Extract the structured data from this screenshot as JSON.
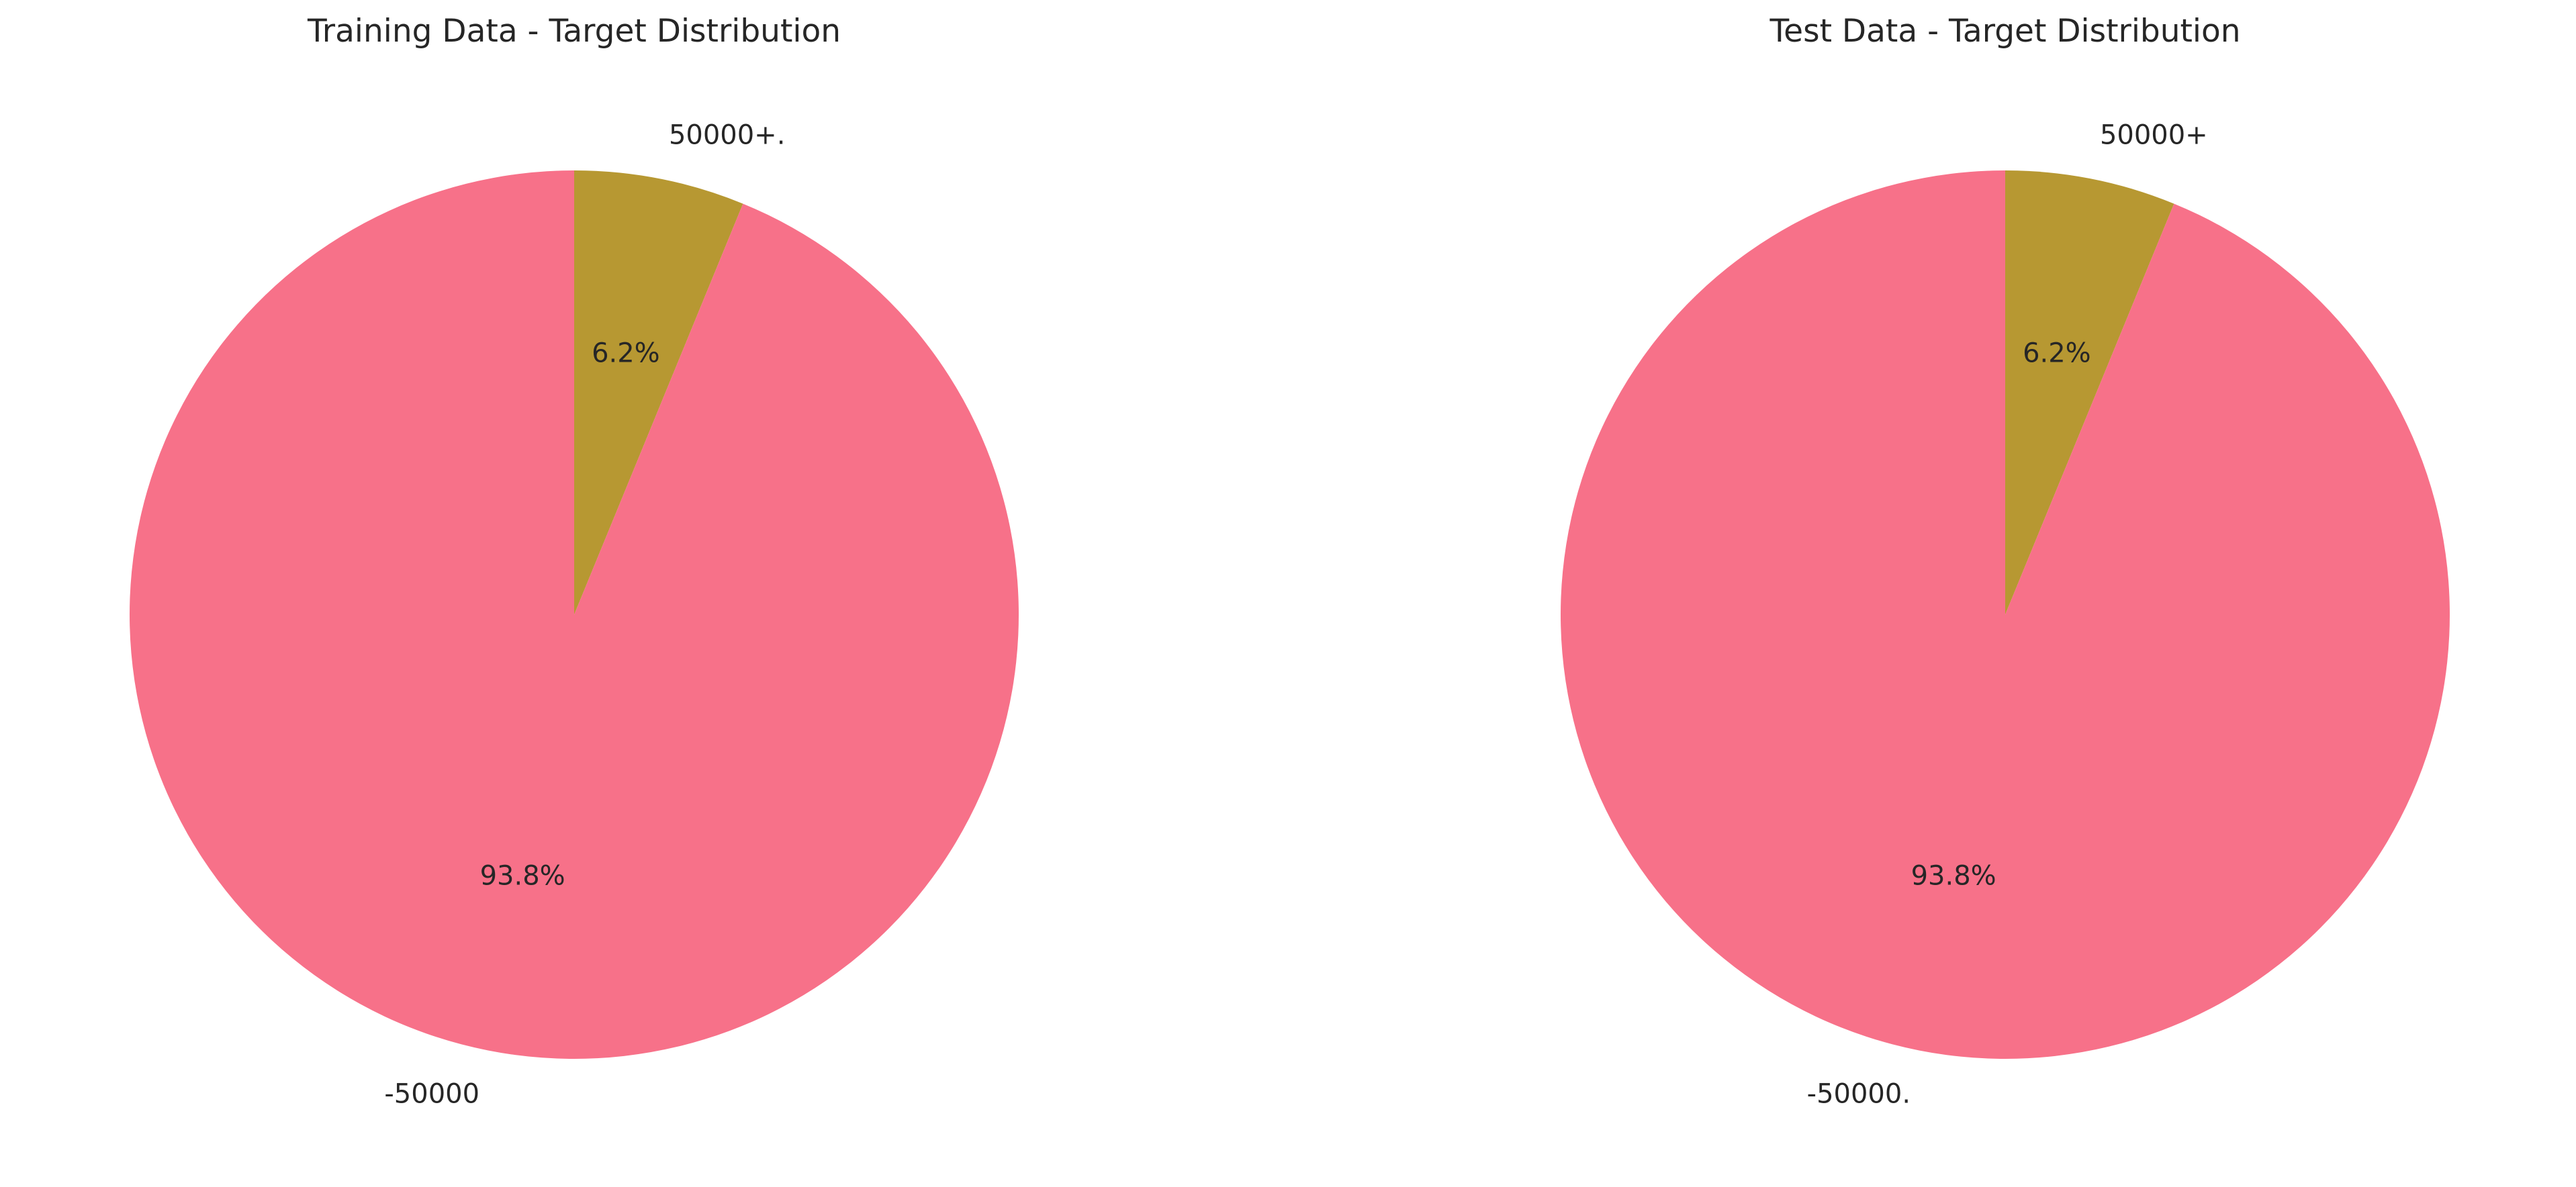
{
  "chart_data": [
    {
      "type": "pie",
      "title": "Training Data - Target Distribution",
      "start_angle_deg": 90,
      "direction": "clockwise",
      "slices": [
        {
          "label": "50000+.",
          "value": 6.2,
          "pct_label": "6.2%",
          "color": "#B79832"
        },
        {
          "label": "-50000",
          "value": 93.8,
          "pct_label": "93.8%",
          "color": "#F77189"
        }
      ]
    },
    {
      "type": "pie",
      "title": "Test Data - Target Distribution",
      "start_angle_deg": 90,
      "direction": "clockwise",
      "slices": [
        {
          "label": "50000+",
          "value": 6.2,
          "pct_label": "6.2%",
          "color": "#B79832"
        },
        {
          "label": "-50000.",
          "value": 93.8,
          "pct_label": "93.8%",
          "color": "#F77189"
        }
      ]
    }
  ]
}
